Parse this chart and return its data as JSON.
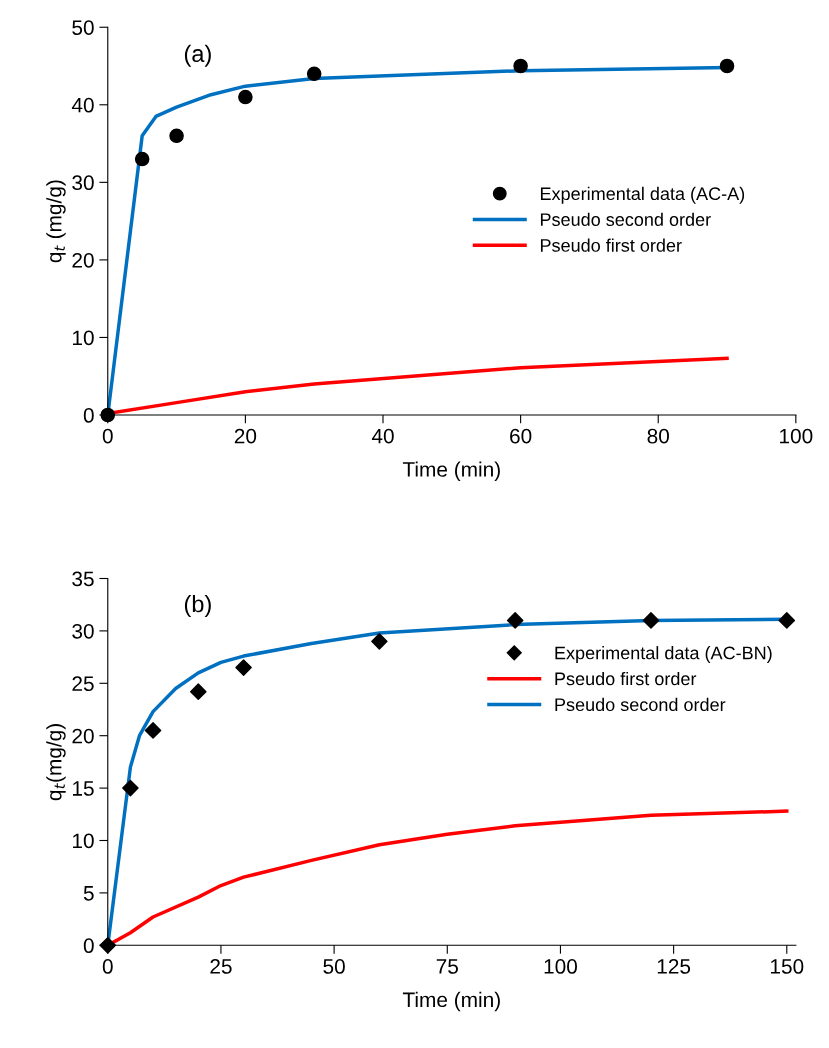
{
  "chart_data": [
    {
      "type": "line",
      "xlabel": "Time (min)",
      "ylabel": "q$_{t}$ (mg/g)",
      "annotations": [
        "(a)"
      ],
      "xlim": [
        0,
        100
      ],
      "xticks": [
        0,
        20,
        40,
        60,
        80,
        100
      ],
      "ylim": [
        0,
        50
      ],
      "yticks": [
        0,
        10,
        20,
        30,
        40,
        50
      ],
      "legend": "center right",
      "series": [
        {
          "name": "Experimental data (AC-A)",
          "type": "scatter",
          "marker": "circle",
          "color": "#000000",
          "x": [
            0,
            5,
            10,
            20,
            30,
            60,
            90
          ],
          "values": [
            0,
            33,
            36,
            41,
            44,
            45,
            45
          ]
        },
        {
          "name": "Pseudo second order",
          "color": "#0070c0",
          "x": [
            0,
            5,
            7,
            10,
            15,
            20,
            30,
            60,
            90
          ],
          "values": [
            0,
            36,
            38.5,
            39.7,
            41.3,
            42.4,
            43.4,
            44.4,
            44.8
          ]
        },
        {
          "name": "Pseudo first order",
          "color": "#ff0000",
          "x": [
            0,
            10,
            20,
            30,
            60,
            90
          ],
          "values": [
            0.2,
            1.6,
            3,
            4,
            6.1,
            7.3
          ]
        }
      ]
    },
    {
      "type": "line",
      "xlabel": "Time (min)",
      "ylabel": "q$_{t}$(mg/g)",
      "annotations": [
        "(b)"
      ],
      "xlim": [
        0,
        152
      ],
      "xticks": [
        0,
        25,
        50,
        75,
        100,
        125,
        150
      ],
      "ylim": [
        0,
        35
      ],
      "yticks": [
        0,
        5,
        10,
        15,
        20,
        25,
        30,
        35
      ],
      "legend": "upper right",
      "series": [
        {
          "name": "Experimental data (AC-BN)",
          "type": "scatter",
          "marker": "diamond",
          "color": "#000000",
          "x": [
            0,
            5,
            10,
            20,
            30,
            60,
            90,
            120,
            150
          ],
          "values": [
            0,
            15,
            20.5,
            24.2,
            26.5,
            29,
            31,
            31,
            31
          ]
        },
        {
          "name": "Pseudo first order",
          "color": "#ff0000",
          "x": [
            0,
            5,
            10,
            20,
            25,
            30,
            45,
            60,
            75,
            90,
            120,
            150
          ],
          "values": [
            0,
            1.2,
            2.7,
            4.6,
            5.7,
            6.5,
            8.1,
            9.6,
            10.6,
            11.4,
            12.4,
            12.8
          ]
        },
        {
          "name": "Pseudo second order",
          "color": "#0070c0",
          "x": [
            0,
            5,
            7,
            10,
            15,
            20,
            25,
            30,
            45,
            60,
            90,
            120,
            150
          ],
          "values": [
            0,
            17,
            20,
            22.3,
            24.5,
            26,
            27,
            27.6,
            28.8,
            29.8,
            30.6,
            31,
            31.1
          ]
        }
      ]
    }
  ]
}
